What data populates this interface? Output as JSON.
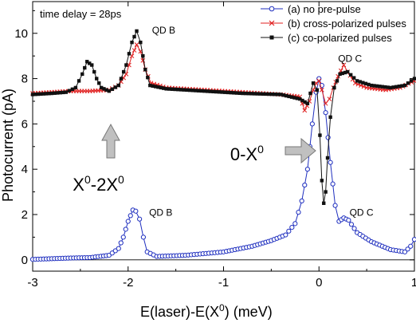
{
  "chart_data": {
    "type": "scatter",
    "title": "",
    "xlabel": "E(laser)-E(X",
    "xlabel_sup": "0",
    "xlabel_tail": ") (meV)",
    "ylabel": "Photocurrent (pA)",
    "xlim": [
      -3,
      1
    ],
    "ylim": [
      -0.5,
      11.4
    ],
    "xticks": [
      -3,
      -2,
      -1,
      0,
      1
    ],
    "yticks": [
      0,
      2,
      4,
      6,
      8,
      10
    ],
    "grid": false,
    "legend_position": "top-right",
    "series": [
      {
        "name": "(a) no pre-pulse",
        "color": "#1f2fbf",
        "marker": "circle-open",
        "points": [
          [
            -3.0,
            0.02
          ],
          [
            -2.8,
            0.05
          ],
          [
            -2.6,
            0.08
          ],
          [
            -2.4,
            0.1
          ],
          [
            -2.2,
            0.2
          ],
          [
            -2.1,
            0.5
          ],
          [
            -2.05,
            1.0
          ],
          [
            -2.0,
            1.7
          ],
          [
            -1.95,
            2.2
          ],
          [
            -1.92,
            2.15
          ],
          [
            -1.88,
            1.8
          ],
          [
            -1.84,
            1.0
          ],
          [
            -1.8,
            0.35
          ],
          [
            -1.7,
            0.15
          ],
          [
            -1.4,
            0.2
          ],
          [
            -1.0,
            0.35
          ],
          [
            -0.7,
            0.6
          ],
          [
            -0.5,
            0.85
          ],
          [
            -0.35,
            1.1
          ],
          [
            -0.25,
            1.6
          ],
          [
            -0.18,
            2.6
          ],
          [
            -0.12,
            4.0
          ],
          [
            -0.07,
            6.0
          ],
          [
            -0.03,
            7.4
          ],
          [
            0.0,
            8.0
          ],
          [
            0.03,
            7.7
          ],
          [
            0.07,
            6.5
          ],
          [
            0.12,
            4.3
          ],
          [
            0.17,
            2.4
          ],
          [
            0.21,
            1.7
          ],
          [
            0.26,
            1.85
          ],
          [
            0.31,
            1.75
          ],
          [
            0.4,
            1.2
          ],
          [
            0.55,
            0.8
          ],
          [
            0.75,
            0.45
          ],
          [
            0.9,
            0.35
          ],
          [
            0.96,
            0.6
          ],
          [
            1.0,
            0.9
          ]
        ]
      },
      {
        "name": "(b) cross-polarized pulses",
        "color": "#e02020",
        "marker": "x",
        "points": [
          [
            -3.0,
            7.35
          ],
          [
            -2.8,
            7.4
          ],
          [
            -2.6,
            7.45
          ],
          [
            -2.4,
            7.45
          ],
          [
            -2.2,
            7.5
          ],
          [
            -2.1,
            7.7
          ],
          [
            -2.02,
            8.2
          ],
          [
            -1.96,
            9.0
          ],
          [
            -1.91,
            9.5
          ],
          [
            -1.87,
            9.2
          ],
          [
            -1.82,
            8.4
          ],
          [
            -1.76,
            7.8
          ],
          [
            -1.6,
            7.6
          ],
          [
            -1.2,
            7.5
          ],
          [
            -0.8,
            7.4
          ],
          [
            -0.4,
            7.3
          ],
          [
            -0.2,
            7.2
          ],
          [
            -0.15,
            6.6
          ],
          [
            -0.1,
            7.0
          ],
          [
            -0.06,
            7.5
          ],
          [
            -0.03,
            7.8
          ],
          [
            0.0,
            7.9
          ],
          [
            0.03,
            7.5
          ],
          [
            0.07,
            6.9
          ],
          [
            0.11,
            7.1
          ],
          [
            0.15,
            7.6
          ],
          [
            0.2,
            8.1
          ],
          [
            0.26,
            8.6
          ],
          [
            0.3,
            8.3
          ],
          [
            0.38,
            7.8
          ],
          [
            0.5,
            7.6
          ],
          [
            0.7,
            7.5
          ],
          [
            0.85,
            7.6
          ],
          [
            1.0,
            7.9
          ]
        ]
      },
      {
        "name": "(c) co-polarized pulses",
        "color": "#111111",
        "marker": "square-filled",
        "points": [
          [
            -3.0,
            7.3
          ],
          [
            -2.8,
            7.35
          ],
          [
            -2.65,
            7.4
          ],
          [
            -2.55,
            7.6
          ],
          [
            -2.48,
            8.2
          ],
          [
            -2.43,
            8.75
          ],
          [
            -2.38,
            8.6
          ],
          [
            -2.33,
            8.0
          ],
          [
            -2.28,
            7.6
          ],
          [
            -2.2,
            7.45
          ],
          [
            -2.1,
            7.7
          ],
          [
            -2.02,
            8.6
          ],
          [
            -1.96,
            9.6
          ],
          [
            -1.91,
            10.1
          ],
          [
            -1.87,
            9.6
          ],
          [
            -1.82,
            8.4
          ],
          [
            -1.77,
            7.7
          ],
          [
            -1.6,
            7.55
          ],
          [
            -1.2,
            7.45
          ],
          [
            -0.8,
            7.35
          ],
          [
            -0.4,
            7.3
          ],
          [
            -0.2,
            7.1
          ],
          [
            -0.12,
            6.9
          ],
          [
            -0.06,
            7.8
          ],
          [
            -0.02,
            7.5
          ],
          [
            0.01,
            5.5
          ],
          [
            0.03,
            3.5
          ],
          [
            0.05,
            2.5
          ],
          [
            0.07,
            3.0
          ],
          [
            0.09,
            4.5
          ],
          [
            0.12,
            6.3
          ],
          [
            0.16,
            7.6
          ],
          [
            0.22,
            8.2
          ],
          [
            0.3,
            8.3
          ],
          [
            0.4,
            7.9
          ],
          [
            0.55,
            7.7
          ],
          [
            0.75,
            7.6
          ],
          [
            0.9,
            7.7
          ],
          [
            1.0,
            8.0
          ]
        ]
      }
    ],
    "annotations": [
      {
        "text": "time delay = 28ps",
        "kind": "top"
      },
      {
        "text": "QD B",
        "x": -1.75,
        "y": 10.0,
        "kind": "small"
      },
      {
        "text": "QD C",
        "x": 0.2,
        "y": 8.75,
        "kind": "small"
      },
      {
        "text": "QD B",
        "x": -1.78,
        "y": 1.95,
        "kind": "small"
      },
      {
        "text": "QD C",
        "x": 0.32,
        "y": 1.95,
        "kind": "small"
      }
    ],
    "big_labels": [
      {
        "main": "X",
        "sup1": "0",
        "mid": "-2X",
        "sup2": "0",
        "x": -2.58,
        "y": 3.05
      },
      {
        "main": "0-X",
        "sup1": "0",
        "mid": "",
        "sup2": "",
        "x": -0.93,
        "y": 4.4
      }
    ]
  }
}
